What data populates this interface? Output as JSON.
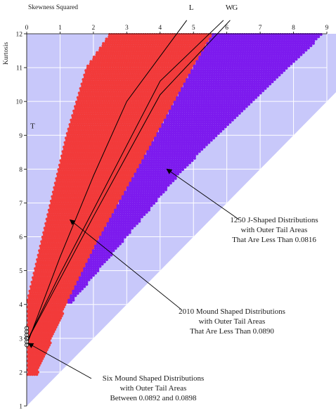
{
  "chart_data": {
    "type": "scatter",
    "title": "",
    "xlabel": "Skewness Squared",
    "ylabel": "Kurtosis",
    "xlim": [
      0,
      9
    ],
    "ylim": [
      1,
      12
    ],
    "x_axis_position": "top",
    "y_axis_inverted": true,
    "x_ticks": [
      0,
      1,
      2,
      3,
      4,
      5,
      6,
      7,
      8,
      9
    ],
    "y_ticks": [
      1,
      2,
      3,
      4,
      5,
      6,
      7,
      8,
      9,
      10,
      11,
      12
    ],
    "grid": true,
    "colors": {
      "feasible_region": "#c8c8fa",
      "mound_points": "#f23a3a",
      "jshaped_points": "#7d1aee",
      "grid": "#ffffff",
      "curves": "#000000"
    },
    "regions": {
      "feasible_lower_bound": "kurtosis = skewness_squared + 1",
      "mound_region": {
        "description": "mound-shaped distributions",
        "left_boundary": [
          [
            0,
            1.9
          ],
          [
            0,
            4.0
          ],
          [
            0.6,
            6.5
          ],
          [
            1.2,
            9.0
          ],
          [
            1.8,
            11.0
          ],
          [
            2.5,
            12.0
          ]
        ],
        "right_boundary": [
          [
            0.3,
            1.9
          ],
          [
            1.2,
            4.0
          ],
          [
            2.1,
            5.8
          ],
          [
            3.9,
            9.0
          ],
          [
            5.0,
            11.0
          ],
          [
            5.6,
            12.0
          ]
        ]
      },
      "jshaped_region": {
        "description": "J-shaped distributions",
        "upper_boundary": [
          [
            1.2,
            4.0
          ],
          [
            2.1,
            5.8
          ],
          [
            3.9,
            9.0
          ],
          [
            5.0,
            11.0
          ],
          [
            5.6,
            12.0
          ],
          [
            8.9,
            12.0
          ]
        ],
        "lower_boundary": [
          [
            1.3,
            4.0
          ],
          [
            4.7,
            8.0
          ],
          [
            8.9,
            12.0
          ]
        ]
      }
    },
    "curves": [
      {
        "label": "L",
        "points": [
          [
            0,
            2.8
          ],
          [
            0.5,
            4.1
          ],
          [
            1.0,
            5.4
          ],
          [
            2.0,
            7.8
          ],
          [
            3.0,
            10.0
          ],
          [
            4.8,
            12.4
          ]
        ]
      },
      {
        "label": "W",
        "points": [
          [
            0,
            2.9
          ],
          [
            1.0,
            4.9
          ],
          [
            2.0,
            6.8
          ],
          [
            3.0,
            8.7
          ],
          [
            4.0,
            10.6
          ],
          [
            5.9,
            12.4
          ]
        ]
      },
      {
        "label": "G",
        "points": [
          [
            0,
            2.9
          ],
          [
            1.0,
            4.75
          ],
          [
            2.0,
            6.6
          ],
          [
            3.0,
            8.4
          ],
          [
            4.0,
            10.2
          ],
          [
            6.1,
            12.4
          ]
        ]
      }
    ],
    "marker_T": {
      "label": "T",
      "x": 0,
      "y_range": [
        2.8,
        3.3
      ]
    },
    "annotations": [
      {
        "lines": [
          "1250 J-Shaped Distributions",
          "with Outer Tail Areas",
          "That Are Less Than 0.0816"
        ],
        "arrow_to": [
          4.2,
          8.0
        ]
      },
      {
        "lines": [
          "2010 Mound Shaped Distributions",
          "with Outer Tail Areas",
          "That Are Less Than 0.0890"
        ],
        "arrow_to": [
          1.3,
          6.5
        ]
      },
      {
        "lines": [
          "Six Mound Shaped Distributions",
          "with Outer Tail Areas",
          "Between 0.0892 and 0.0898"
        ],
        "arrow_to": [
          0.05,
          2.85
        ]
      }
    ]
  }
}
